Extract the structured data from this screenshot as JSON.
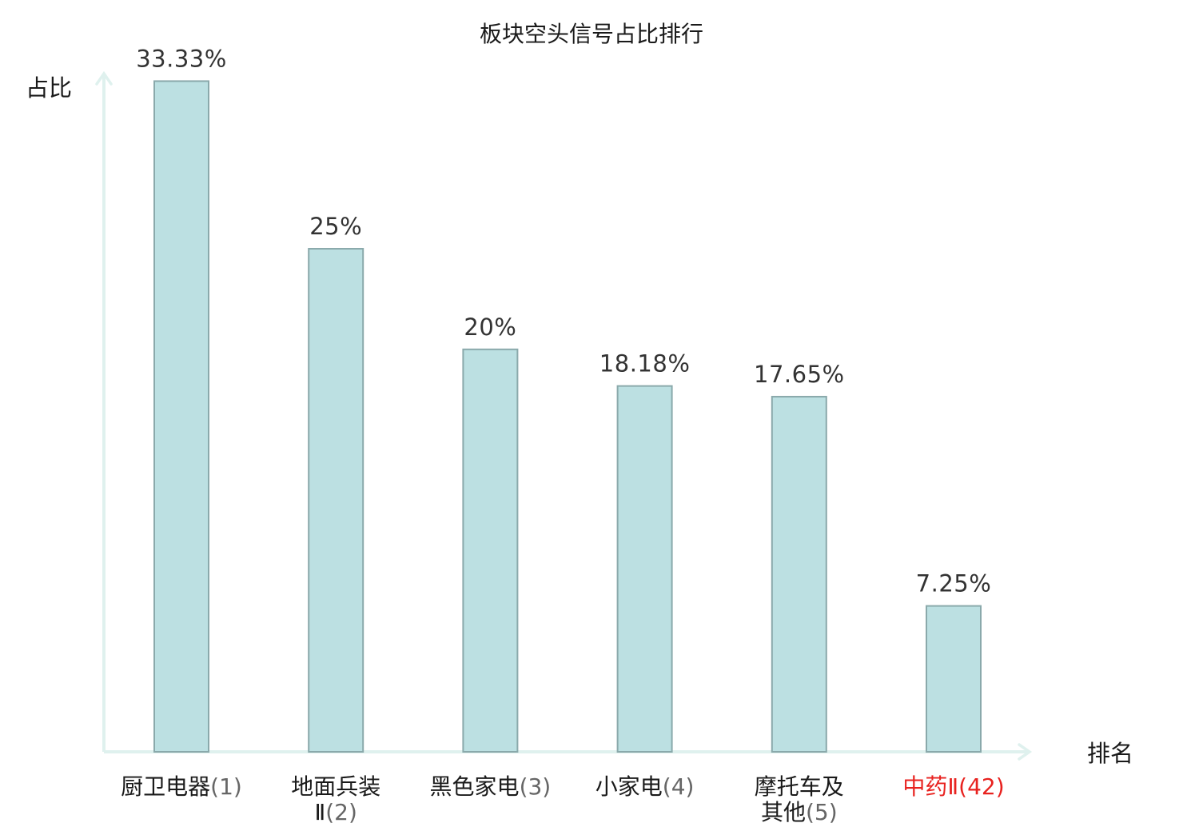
{
  "chart_data": {
    "type": "bar",
    "title": "板块空头信号占比排行",
    "xlabel": "排名",
    "ylabel": "占比",
    "categories": [
      {
        "name": "厨卫电器",
        "rank": "(1)",
        "lines": [
          [
            "厨卫电器",
            "(1)"
          ]
        ]
      },
      {
        "name": "地面兵装Ⅱ",
        "rank": "(2)",
        "lines": [
          [
            "地面兵装",
            ""
          ],
          [
            "Ⅱ",
            "(2)"
          ]
        ]
      },
      {
        "name": "黑色家电",
        "rank": "(3)",
        "lines": [
          [
            "黑色家电",
            "(3)"
          ]
        ]
      },
      {
        "name": "小家电",
        "rank": "(4)",
        "lines": [
          [
            "小家电",
            "(4)"
          ]
        ]
      },
      {
        "name": "摩托车及其他",
        "rank": "(5)",
        "lines": [
          [
            "摩托车及",
            ""
          ],
          [
            "其他",
            "(5)"
          ]
        ]
      },
      {
        "name": "中药Ⅱ",
        "rank": "(42)",
        "lines": [
          [
            "中药Ⅱ",
            "(42)"
          ]
        ],
        "highlight": true
      }
    ],
    "values": [
      33.33,
      25,
      20,
      18.18,
      17.65,
      7.25
    ],
    "value_labels": [
      "33.33%",
      "25%",
      "20%",
      "18.18%",
      "17.65%",
      "7.25%"
    ],
    "ylim": [
      0,
      34.5
    ],
    "grid": false,
    "legend": "none",
    "colors": {
      "bar_fill": "#bce0e2",
      "bar_stroke": "#8aa9ab",
      "axis": "#dff1ee",
      "highlight": "#e8221f",
      "text": "#1a1a1a",
      "label": "#333333"
    }
  }
}
